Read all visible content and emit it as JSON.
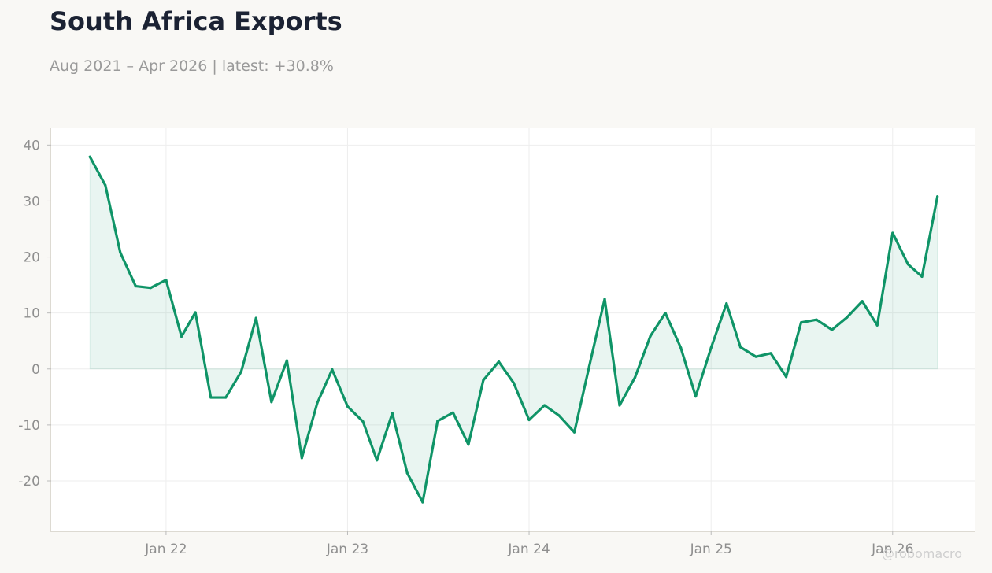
{
  "header": {
    "title": "South Africa Exports",
    "subtitle": "Aug 2021 – Apr 2026 | latest: +30.8%"
  },
  "watermark": "@robomacro",
  "colors": {
    "line": "#0f9467",
    "fill": "#0f9467",
    "background": "#f9f8f5",
    "plot_bg": "#ffffff",
    "grid": "#eeeeee",
    "axis": "#dddad2"
  },
  "chart_data": {
    "type": "area",
    "title": "South Africa Exports",
    "subtitle": "Aug 2021 – Apr 2026 | latest: +30.8%",
    "xlabel": "",
    "ylabel": "",
    "ylim": [
      -29,
      43
    ],
    "xlim": [
      "2021-05-15",
      "2026-06-15"
    ],
    "yticks": [
      -20,
      -10,
      0,
      10,
      20,
      30,
      40
    ],
    "ytick_labels": [
      "-20",
      "-10",
      "0",
      "10",
      "20",
      "30",
      "40"
    ],
    "xticks": [
      "2022-01-01",
      "2023-01-01",
      "2024-01-01",
      "2025-01-01",
      "2026-01-01"
    ],
    "xtick_labels": [
      "Jan 22",
      "Jan 23",
      "Jan 24",
      "Jan 25",
      "Jan 26"
    ],
    "grid": true,
    "series": [
      {
        "x": [
          "2021-08",
          "2021-09",
          "2021-10",
          "2021-11",
          "2021-12",
          "2022-01",
          "2022-02",
          "2022-03",
          "2022-04",
          "2022-05",
          "2022-06",
          "2022-07",
          "2022-08",
          "2022-09",
          "2022-10",
          "2022-11",
          "2022-12",
          "2023-01",
          "2023-02",
          "2023-03",
          "2023-04",
          "2023-05",
          "2023-06",
          "2023-07",
          "2023-08",
          "2023-09",
          "2023-10",
          "2023-11",
          "2023-12",
          "2024-01",
          "2024-02",
          "2024-03",
          "2024-04",
          "2024-05",
          "2024-06",
          "2024-07",
          "2024-08",
          "2024-09",
          "2024-10",
          "2024-11",
          "2024-12",
          "2025-01",
          "2025-02",
          "2025-03",
          "2025-04",
          "2025-05",
          "2025-06",
          "2025-07",
          "2025-08",
          "2025-09",
          "2025-10",
          "2025-11",
          "2025-12",
          "2026-01",
          "2026-02",
          "2026-03",
          "2026-04"
        ],
        "values": [
          37.9,
          32.8,
          20.8,
          14.8,
          14.5,
          15.9,
          5.8,
          10.1,
          -5.1,
          -5.1,
          -0.5,
          9.1,
          -5.9,
          1.5,
          -15.9,
          -6.1,
          -0.1,
          -6.7,
          -9.4,
          -16.3,
          -7.9,
          -18.6,
          -23.8,
          -9.3,
          -7.8,
          -13.5,
          -2.0,
          1.3,
          -2.5,
          -9.1,
          -6.5,
          -8.3,
          -11.3,
          0.5,
          12.5,
          -6.5,
          -1.5,
          5.9,
          10.0,
          3.8,
          -4.9,
          3.8,
          11.7,
          3.9,
          2.2,
          2.8,
          -1.4,
          8.3,
          8.8,
          7.0,
          9.2,
          12.1,
          7.8,
          24.3,
          18.7,
          16.5,
          30.8
        ]
      }
    ]
  }
}
